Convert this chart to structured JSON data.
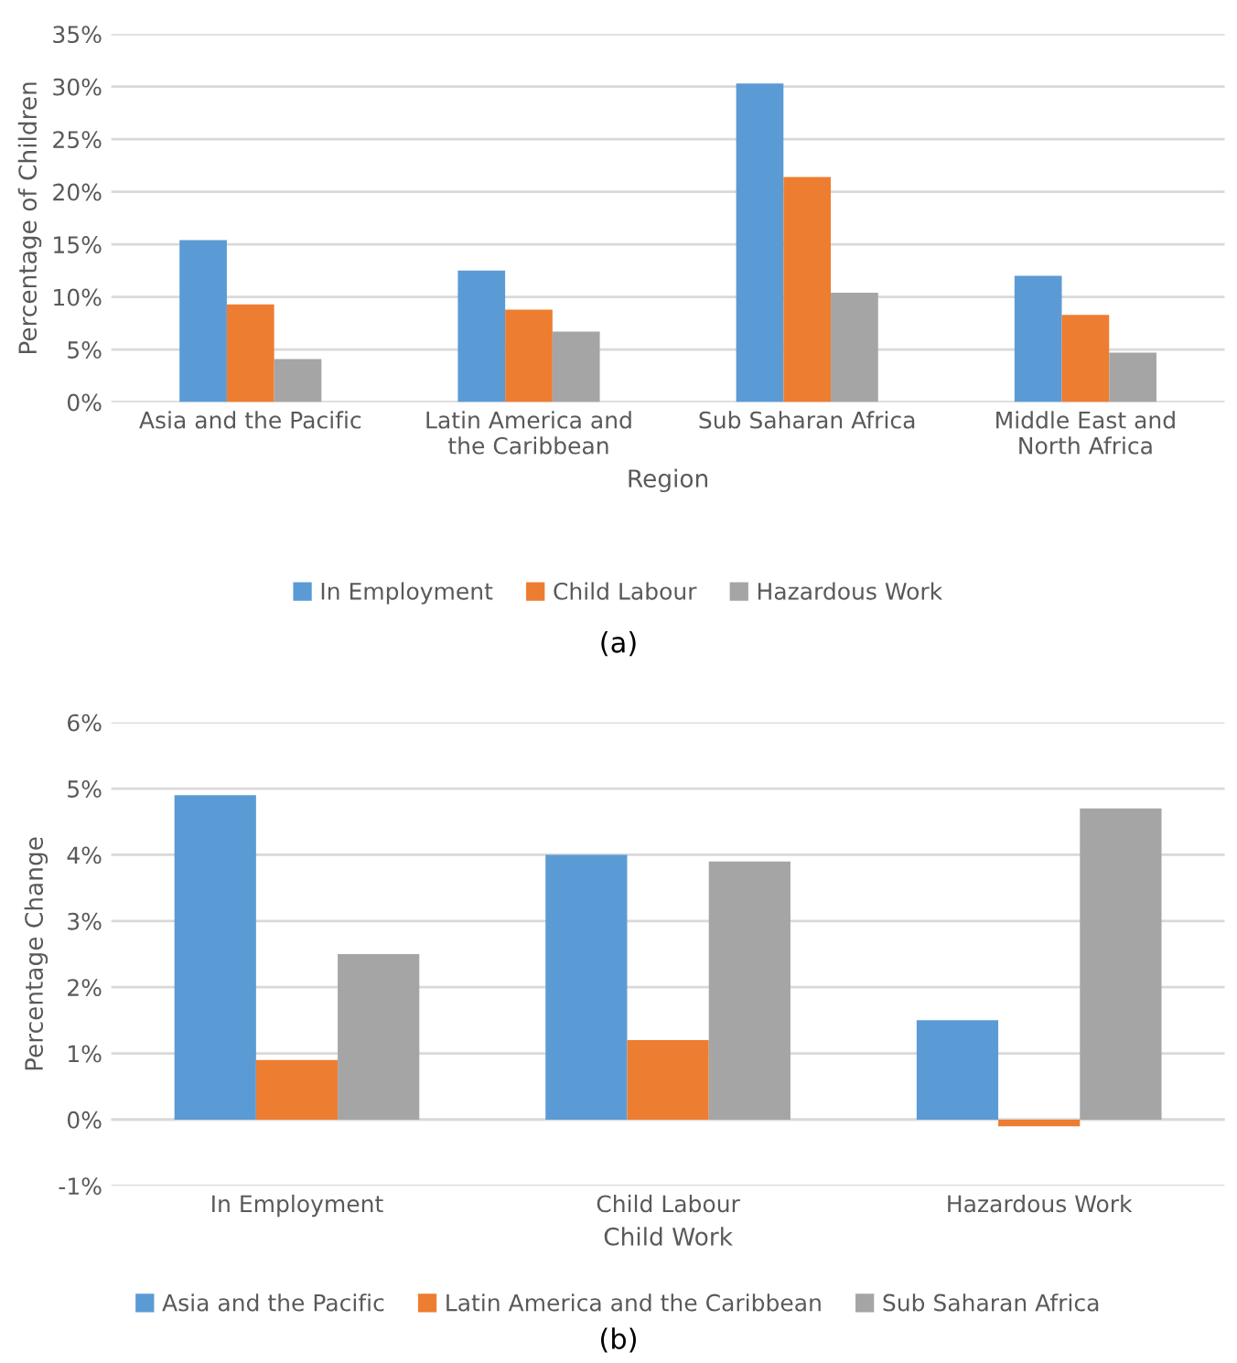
{
  "chart_data": [
    {
      "type": "bar",
      "xlabel": "Region",
      "ylabel": "Percentage of Children",
      "categories": [
        "Asia and the Pacific",
        "Latin America and\nthe Caribbean",
        "Sub Saharan Africa",
        "Middle East and\nNorth Africa"
      ],
      "series": [
        {
          "name": "In Employment",
          "color": "#5b9bd5",
          "values": [
            15.4,
            12.5,
            30.3,
            12.0
          ]
        },
        {
          "name": "Child Labour",
          "color": "#ed7d31",
          "values": [
            9.3,
            8.8,
            21.4,
            8.3
          ]
        },
        {
          "name": "Hazardous Work",
          "color": "#a5a5a5",
          "values": [
            4.1,
            6.7,
            10.4,
            4.7
          ]
        }
      ],
      "ylim": [
        0,
        35
      ],
      "yticks": [
        {
          "value": 0,
          "label": "0%"
        },
        {
          "value": 5,
          "label": "5%"
        },
        {
          "value": 10,
          "label": "10%"
        },
        {
          "value": 15,
          "label": "15%"
        },
        {
          "value": 20,
          "label": "20%"
        },
        {
          "value": 25,
          "label": "25%"
        },
        {
          "value": 30,
          "label": "30%"
        },
        {
          "value": 35,
          "label": "35%"
        }
      ],
      "grid": "y",
      "legend": "bottom",
      "annotations": [
        "(a)"
      ]
    },
    {
      "type": "bar",
      "xlabel": "Child Work",
      "ylabel": "Percentage Change",
      "categories": [
        "In Employment",
        "Child Labour",
        "Hazardous Work"
      ],
      "series": [
        {
          "name": "Asia and the Pacific",
          "color": "#5b9bd5",
          "values": [
            4.9,
            4.0,
            1.5
          ]
        },
        {
          "name": "Latin America and the Caribbean",
          "color": "#ed7d31",
          "values": [
            0.9,
            1.2,
            -0.1
          ]
        },
        {
          "name": "Sub Saharan Africa",
          "color": "#a5a5a5",
          "values": [
            2.5,
            3.9,
            4.7
          ]
        }
      ],
      "ylim": [
        -1,
        6
      ],
      "yticks": [
        {
          "value": -1,
          "label": "-1%"
        },
        {
          "value": 0,
          "label": "0%"
        },
        {
          "value": 1,
          "label": "1%"
        },
        {
          "value": 2,
          "label": "2%"
        },
        {
          "value": 3,
          "label": "3%"
        },
        {
          "value": 4,
          "label": "4%"
        },
        {
          "value": 5,
          "label": "5%"
        },
        {
          "value": 6,
          "label": "6%"
        }
      ],
      "grid": "y",
      "legend": "bottom",
      "annotations": [
        "(b)"
      ]
    }
  ]
}
